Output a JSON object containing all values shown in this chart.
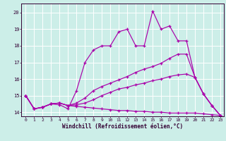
{
  "xlabel": "Windchill (Refroidissement éolien,°C)",
  "xlim_min": -0.5,
  "xlim_max": 23.4,
  "ylim_min": 13.75,
  "ylim_max": 20.55,
  "yticks": [
    14,
    15,
    16,
    17,
    18,
    19,
    20
  ],
  "xticks": [
    0,
    1,
    2,
    3,
    4,
    5,
    6,
    7,
    8,
    9,
    10,
    11,
    12,
    13,
    14,
    15,
    16,
    17,
    18,
    19,
    20,
    21,
    22,
    23
  ],
  "bg_color": "#cceee8",
  "grid_color": "#aaddcc",
  "line_color": "#aa00aa",
  "lines": [
    {
      "x": [
        0,
        1,
        2,
        3,
        4,
        5,
        6,
        7,
        8,
        9,
        10,
        11,
        12,
        13,
        14,
        15,
        16,
        17,
        18,
        19,
        20,
        21,
        22,
        23
      ],
      "y": [
        15.0,
        14.2,
        14.3,
        14.5,
        14.45,
        14.2,
        15.3,
        17.0,
        17.75,
        18.0,
        18.0,
        18.85,
        19.0,
        18.0,
        18.0,
        20.1,
        19.0,
        19.2,
        18.3,
        18.3,
        16.1,
        15.1,
        14.4,
        13.8
      ]
    },
    {
      "x": [
        0,
        1,
        2,
        3,
        4,
        5,
        6,
        7,
        8,
        9,
        10,
        11,
        12,
        13,
        14,
        15,
        16,
        17,
        18,
        19,
        20,
        21,
        22,
        23
      ],
      "y": [
        15.0,
        14.2,
        14.3,
        14.5,
        14.55,
        14.4,
        14.55,
        14.85,
        15.3,
        15.55,
        15.75,
        15.95,
        16.15,
        16.4,
        16.6,
        16.75,
        16.95,
        17.25,
        17.5,
        17.5,
        16.1,
        15.1,
        14.4,
        13.8
      ]
    },
    {
      "x": [
        0,
        1,
        2,
        3,
        4,
        5,
        6,
        7,
        8,
        9,
        10,
        11,
        12,
        13,
        14,
        15,
        16,
        17,
        18,
        19,
        20,
        21,
        22,
        23
      ],
      "y": [
        15.0,
        14.2,
        14.3,
        14.5,
        14.55,
        14.4,
        14.45,
        14.55,
        14.75,
        15.0,
        15.2,
        15.4,
        15.5,
        15.65,
        15.75,
        15.9,
        16.0,
        16.15,
        16.25,
        16.3,
        16.1,
        15.1,
        14.4,
        13.8
      ]
    },
    {
      "x": [
        0,
        1,
        2,
        3,
        4,
        5,
        6,
        7,
        8,
        9,
        10,
        11,
        12,
        13,
        14,
        15,
        16,
        17,
        18,
        19,
        20,
        21,
        22,
        23
      ],
      "y": [
        15.0,
        14.2,
        14.3,
        14.5,
        14.55,
        14.4,
        14.35,
        14.3,
        14.25,
        14.2,
        14.15,
        14.1,
        14.1,
        14.05,
        14.05,
        14.0,
        14.0,
        13.95,
        13.95,
        13.95,
        13.95,
        13.9,
        13.85,
        13.8
      ]
    }
  ]
}
